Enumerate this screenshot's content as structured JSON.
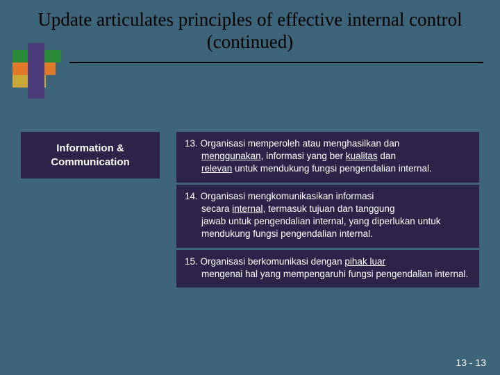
{
  "colors": {
    "slide_bg": "#3e647a",
    "box_bg": "#2d2348",
    "text_light": "#ffffff",
    "title_color": "#000000",
    "logo_green": "#2a8a3a",
    "logo_orange": "#e07a2a",
    "logo_gold": "#c9a93a",
    "logo_purple": "#4a3a7a"
  },
  "title": "Update articulates principles of effective internal control (continued)",
  "left_box": {
    "line1": "Information &",
    "line2": "Communication"
  },
  "principles": {
    "p13": {
      "num": "13.",
      "l1": "Organisasi memperoleh atau menghasilkan dan",
      "u1": "menggunakan",
      "l2": ", informasi yang ber ",
      "u2": "kualitas",
      "l3": " dan",
      "u3": "relevan",
      "l4": " untuk mendukung fungsi pengendalian internal."
    },
    "p14": {
      "num": "14.",
      "l1": "Organisasi mengkomunikasikan informasi",
      "l2a": "secara ",
      "u1": "internal",
      "l2b": ", termasuk tujuan dan tanggung",
      "l3": "jawab untuk pengendalian internal, yang diperlukan untuk mendukung fungsi pengendalian internal."
    },
    "p15": {
      "num": "15.",
      "l1": "Organisasi berkomunikasi dengan ",
      "u1": "pihak luar",
      "l2": "mengenai hal yang mempengaruhi fungsi pengendalian internal."
    }
  },
  "page_number": "13 - 13"
}
